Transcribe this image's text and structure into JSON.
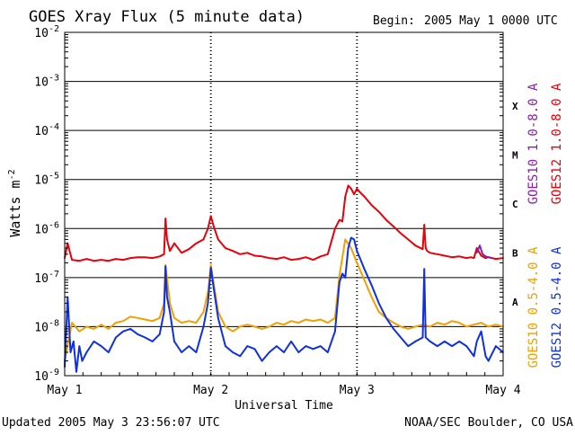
{
  "chart_data": {
    "type": "line",
    "title": "GOES Xray Flux (5 minute data)",
    "begin_label": "Begin:",
    "begin_value": "2005 May 1 0000 UTC",
    "ylabel": "Watts m",
    "ylabel_sup": "-2",
    "xlabel": "Universal Time",
    "yscale": "log",
    "ylim": [
      1e-09,
      0.01
    ],
    "xlim": [
      0,
      3
    ],
    "grid": true,
    "y_ticks": [
      {
        "value": 1e-09,
        "base": "10",
        "exp": "-9"
      },
      {
        "value": 1e-08,
        "base": "10",
        "exp": "-8"
      },
      {
        "value": 1e-07,
        "base": "10",
        "exp": "-7"
      },
      {
        "value": 1e-06,
        "base": "10",
        "exp": "-6"
      },
      {
        "value": 1e-05,
        "base": "10",
        "exp": "-5"
      },
      {
        "value": 0.0001,
        "base": "10",
        "exp": "-4"
      },
      {
        "value": 0.001,
        "base": "10",
        "exp": "-3"
      },
      {
        "value": 0.01,
        "base": "10",
        "exp": "-2"
      }
    ],
    "x_ticks": [
      {
        "value": 0,
        "label": "May 1"
      },
      {
        "value": 1,
        "label": "May 2"
      },
      {
        "value": 2,
        "label": "May 3"
      },
      {
        "value": 3,
        "label": "May 4"
      }
    ],
    "flare_classes": [
      {
        "label": "A",
        "value": 3.16e-08
      },
      {
        "label": "B",
        "value": 3.16e-07
      },
      {
        "label": "C",
        "value": 3.16e-06
      },
      {
        "label": "M",
        "value": 3.16e-05
      },
      {
        "label": "X",
        "value": 0.000316
      }
    ],
    "legend_right": [
      {
        "name": "GOES12 1.0-8.0 A",
        "color": "#e8000b"
      },
      {
        "name": "GOES10 1.0-8.0 A",
        "color": "#8b1fa8"
      }
    ],
    "legend_right_bottom": [
      {
        "name": "GOES12 0.5-4.0 A",
        "color": "#1030e0"
      },
      {
        "name": "GOES10 0.5-4.0 A",
        "color": "#f0a000"
      }
    ],
    "series": [
      {
        "name": "GOES12 1.0-8.0 A",
        "color": "#e8000b",
        "x": [
          0,
          0.02,
          0.05,
          0.1,
          0.15,
          0.2,
          0.25,
          0.3,
          0.35,
          0.4,
          0.45,
          0.5,
          0.55,
          0.6,
          0.65,
          0.68,
          0.69,
          0.7,
          0.72,
          0.75,
          0.8,
          0.85,
          0.9,
          0.95,
          0.98,
          1.0,
          1.02,
          1.05,
          1.1,
          1.15,
          1.2,
          1.25,
          1.3,
          1.35,
          1.4,
          1.45,
          1.5,
          1.55,
          1.6,
          1.65,
          1.7,
          1.75,
          1.8,
          1.85,
          1.88,
          1.9,
          1.92,
          1.94,
          1.96,
          1.98,
          2.0,
          2.02,
          2.05,
          2.1,
          2.15,
          2.2,
          2.25,
          2.3,
          2.35,
          2.4,
          2.45,
          2.46,
          2.47,
          2.48,
          2.5,
          2.55,
          2.6,
          2.65,
          2.7,
          2.75,
          2.78,
          2.8,
          2.82,
          2.85,
          2.88,
          2.9,
          2.95,
          3.0
        ],
        "y": [
          2.5e-07,
          5e-07,
          2.3e-07,
          2.2e-07,
          2.4e-07,
          2.2e-07,
          2.3e-07,
          2.2e-07,
          2.4e-07,
          2.3e-07,
          2.5e-07,
          2.6e-07,
          2.6e-07,
          2.5e-07,
          2.7e-07,
          3e-07,
          1.6e-06,
          6e-07,
          3.5e-07,
          5e-07,
          3.2e-07,
          3.8e-07,
          5e-07,
          6e-07,
          1e-06,
          1.8e-06,
          1.1e-06,
          6e-07,
          4e-07,
          3.5e-07,
          3e-07,
          3.2e-07,
          2.8e-07,
          2.7e-07,
          2.5e-07,
          2.4e-07,
          2.6e-07,
          2.3e-07,
          2.4e-07,
          2.6e-07,
          2.3e-07,
          2.7e-07,
          3e-07,
          1e-06,
          1.5e-06,
          1.4e-06,
          4.5e-06,
          7.5e-06,
          6.5e-06,
          5e-06,
          6.5e-06,
          5.5e-06,
          4.5e-06,
          3e-06,
          2.2e-06,
          1.5e-06,
          1.1e-06,
          8e-07,
          6e-07,
          4.5e-07,
          3.8e-07,
          1.2e-06,
          4e-07,
          3.5e-07,
          3.2e-07,
          3e-07,
          2.8e-07,
          2.6e-07,
          2.7e-07,
          2.5e-07,
          2.6e-07,
          2.5e-07,
          4e-07,
          2.8e-07,
          2.5e-07,
          2.6e-07,
          2.4e-07,
          2.5e-07
        ]
      },
      {
        "name": "GOES10 1.0-8.0 A",
        "color": "#8b1fa8",
        "x": [
          2.82,
          2.84,
          2.86,
          2.88,
          2.9,
          2.92
        ],
        "y": [
          3.2e-07,
          4.5e-07,
          3e-07,
          2.7e-07,
          2.6e-07,
          2.5e-07
        ]
      },
      {
        "name": "GOES10 0.5-4.0 A",
        "color": "#f0a000",
        "x": [
          0,
          0.05,
          0.1,
          0.15,
          0.2,
          0.25,
          0.3,
          0.35,
          0.4,
          0.45,
          0.5,
          0.55,
          0.6,
          0.65,
          0.68,
          0.69,
          0.72,
          0.75,
          0.8,
          0.85,
          0.9,
          0.95,
          0.98,
          1.0,
          1.05,
          1.1,
          1.15,
          1.2,
          1.25,
          1.3,
          1.35,
          1.4,
          1.45,
          1.5,
          1.55,
          1.6,
          1.65,
          1.7,
          1.75,
          1.8,
          1.85,
          1.88,
          1.92,
          1.96,
          2.0,
          2.05,
          2.1,
          2.15,
          2.2,
          2.25,
          2.3,
          2.35,
          2.4,
          2.45,
          2.5,
          2.55,
          2.6,
          2.65,
          2.7,
          2.75,
          2.8,
          2.85,
          2.9,
          2.95,
          3.0
        ],
        "y": [
          2e-09,
          1.2e-08,
          8e-09,
          1e-08,
          9e-09,
          1.1e-08,
          9e-09,
          1.2e-08,
          1.3e-08,
          1.6e-08,
          1.5e-08,
          1.4e-08,
          1.3e-08,
          1.5e-08,
          3e-08,
          1.8e-07,
          3e-08,
          1.5e-08,
          1.2e-08,
          1.3e-08,
          1.2e-08,
          2e-08,
          5e-08,
          1.8e-07,
          2e-08,
          1e-08,
          8e-09,
          1e-08,
          1.1e-08,
          1e-08,
          9e-09,
          1e-08,
          1.2e-08,
          1.1e-08,
          1.3e-08,
          1.2e-08,
          1.4e-08,
          1.3e-08,
          1.4e-08,
          1.2e-08,
          1.5e-08,
          1.1e-07,
          6e-07,
          4e-07,
          2e-07,
          9e-08,
          4e-08,
          2e-08,
          1.5e-08,
          1.2e-08,
          1e-08,
          9e-09,
          1e-08,
          1.1e-08,
          1e-08,
          1.2e-08,
          1.1e-08,
          1.3e-08,
          1.2e-08,
          1e-08,
          1.1e-08,
          1.2e-08,
          1e-08,
          1.1e-08,
          1e-08
        ]
      },
      {
        "name": "GOES12 0.5-4.0 A",
        "color": "#1030e0",
        "x": [
          0,
          0.02,
          0.04,
          0.06,
          0.08,
          0.1,
          0.12,
          0.15,
          0.2,
          0.25,
          0.3,
          0.35,
          0.4,
          0.45,
          0.5,
          0.55,
          0.6,
          0.65,
          0.68,
          0.69,
          0.7,
          0.72,
          0.75,
          0.8,
          0.85,
          0.9,
          0.95,
          0.98,
          1.0,
          1.02,
          1.05,
          1.1,
          1.15,
          1.2,
          1.25,
          1.3,
          1.35,
          1.4,
          1.45,
          1.5,
          1.55,
          1.6,
          1.65,
          1.7,
          1.75,
          1.8,
          1.85,
          1.88,
          1.9,
          1.92,
          1.94,
          1.96,
          1.98,
          2.0,
          2.02,
          2.05,
          2.1,
          2.15,
          2.2,
          2.25,
          2.3,
          2.35,
          2.4,
          2.45,
          2.46,
          2.47,
          2.5,
          2.55,
          2.6,
          2.65,
          2.7,
          2.75,
          2.8,
          2.82,
          2.85,
          2.88,
          2.9,
          2.95,
          3.0
        ],
        "y": [
          1.5e-09,
          4e-08,
          3e-09,
          5e-09,
          1.2e-09,
          4e-09,
          2e-09,
          3e-09,
          5e-09,
          4e-09,
          3e-09,
          6e-09,
          8e-09,
          9e-09,
          7e-09,
          6e-09,
          5e-09,
          7e-09,
          2e-08,
          1.7e-07,
          4e-08,
          2e-08,
          5e-09,
          3e-09,
          4e-09,
          3e-09,
          1e-08,
          3e-08,
          1.6e-07,
          6e-08,
          1.5e-08,
          4e-09,
          3e-09,
          2.5e-09,
          4e-09,
          3.5e-09,
          2e-09,
          3e-09,
          4e-09,
          3e-09,
          5e-09,
          3e-09,
          4e-09,
          3.5e-09,
          4e-09,
          3e-09,
          8e-09,
          8e-08,
          1.2e-07,
          1e-07,
          4e-07,
          6.5e-07,
          6e-07,
          3.5e-07,
          2.5e-07,
          1.5e-07,
          7e-08,
          3e-08,
          1.5e-08,
          9e-09,
          6e-09,
          4e-09,
          5e-09,
          6e-09,
          1.5e-07,
          6e-09,
          5e-09,
          4e-09,
          5e-09,
          4e-09,
          5e-09,
          4e-09,
          2.5e-09,
          5e-09,
          8e-09,
          2.5e-09,
          2e-09,
          4e-09,
          3e-09
        ]
      }
    ]
  },
  "footer": {
    "updated": "Updated 2005 May  3 23:56:07 UTC",
    "credit": "NOAA/SEC Boulder, CO USA"
  }
}
